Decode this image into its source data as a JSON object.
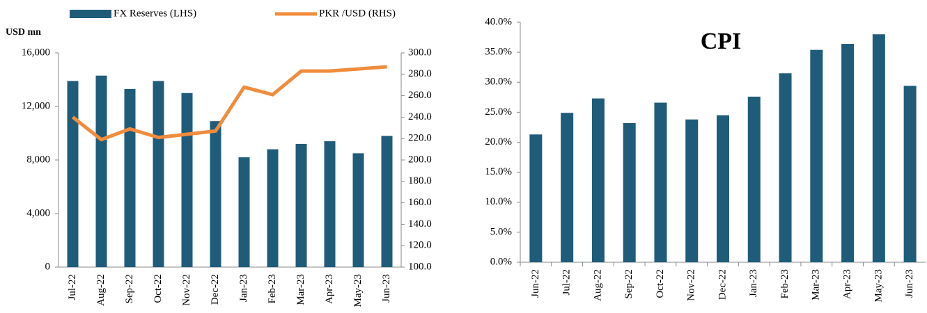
{
  "chart_data": [
    {
      "type": "bar_line",
      "ylabel": "USD mn",
      "categories": [
        "Jul-22",
        "Aug-22",
        "Sep-22",
        "Oct-22",
        "Nov-22",
        "Dec-22",
        "Jan-23",
        "Feb-23",
        "Mar-23",
        "Apr-23",
        "May-23",
        "Jun-23"
      ],
      "series": [
        {
          "name": "FX Reserves (LHS)",
          "color": "#1f5c7a",
          "values": [
            13900,
            14300,
            13300,
            13900,
            13000,
            10900,
            8200,
            8800,
            9200,
            9400,
            8500,
            9800
          ]
        },
        {
          "name": "PKR /USD (RHS)",
          "color": "#f08c3c",
          "axis": "y2",
          "values": [
            240,
            219,
            229,
            221,
            224,
            227,
            268,
            261,
            283,
            283,
            285,
            287
          ]
        }
      ],
      "ylim": [
        0,
        16000
      ],
      "yticks": [
        0,
        {
          "value": 4000,
          "label": "4,000"
        },
        {
          "value": 8000,
          "label": "8,000"
        },
        {
          "value": 12000,
          "label": "12,000"
        },
        {
          "value": 16000,
          "label": "16,000"
        }
      ],
      "y2lim": [
        100,
        300
      ],
      "y2ticks": [
        {
          "value": 100,
          "label": "100.0"
        },
        {
          "value": 120,
          "label": "120.0"
        },
        {
          "value": 140,
          "label": "140.0"
        },
        {
          "value": 160,
          "label": "160.0"
        },
        {
          "value": 180,
          "label": "180.0"
        },
        {
          "value": 200,
          "label": "200.0"
        },
        {
          "value": 220,
          "label": "220.0"
        },
        {
          "value": 240,
          "label": "240.0"
        },
        {
          "value": 260,
          "label": "260.0"
        },
        {
          "value": 280,
          "label": "280.0"
        },
        {
          "value": 300,
          "label": "300.0"
        }
      ],
      "legend": "top"
    },
    {
      "type": "bar",
      "title": "CPI",
      "categories": [
        "Jun-22",
        "Jul-22",
        "Aug-22",
        "Sep-22",
        "Oct-22",
        "Nov-22",
        "Dec-22",
        "Jan-23",
        "Feb-23",
        "Mar-23",
        "Apr-23",
        "May-23",
        "Jun-23"
      ],
      "values": [
        21.3,
        24.9,
        27.3,
        23.2,
        26.6,
        23.8,
        24.5,
        27.6,
        31.5,
        35.4,
        36.4,
        38.0,
        29.4
      ],
      "color": "#1f5c7a",
      "ylim": [
        0,
        40
      ],
      "yticks": [
        {
          "value": 0,
          "label": "0.0%"
        },
        {
          "value": 5,
          "label": "5.0%"
        },
        {
          "value": 10,
          "label": "10.0%"
        },
        {
          "value": 15,
          "label": "15.0%"
        },
        {
          "value": 20,
          "label": "20.0%"
        },
        {
          "value": 25,
          "label": "25.0%"
        },
        {
          "value": 30,
          "label": "30.0%"
        },
        {
          "value": 35,
          "label": "35.0%"
        },
        {
          "value": 40,
          "label": "40.0%"
        }
      ]
    }
  ]
}
